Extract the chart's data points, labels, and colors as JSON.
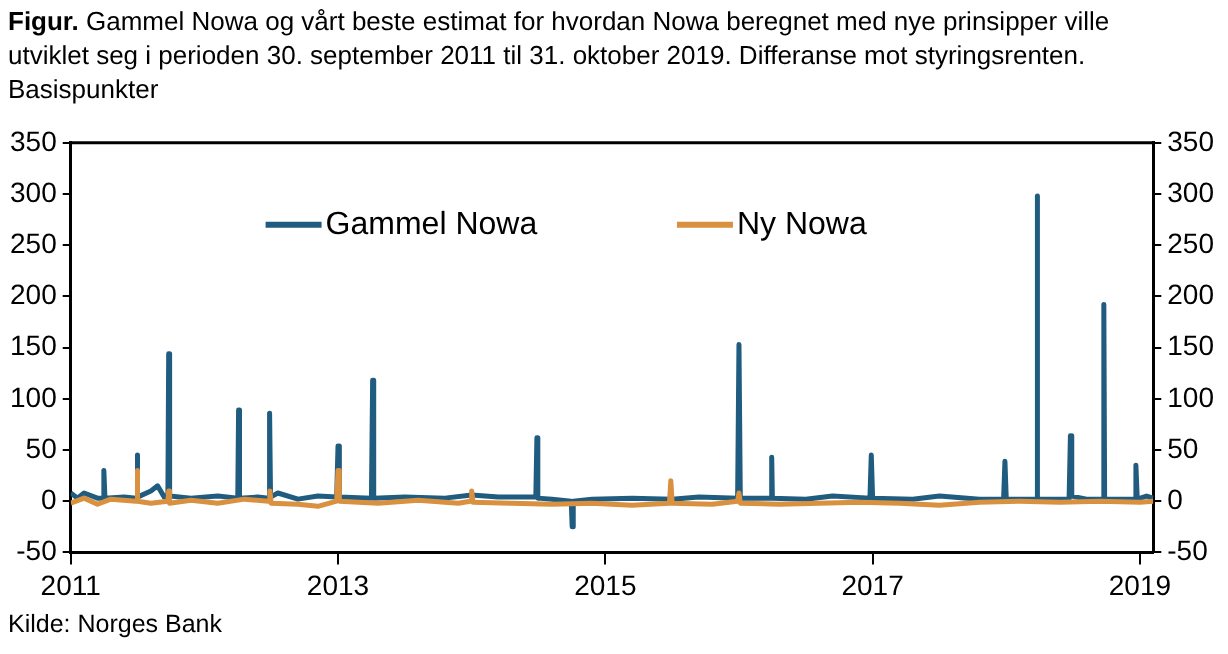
{
  "chart_data": {
    "type": "line",
    "title": "Figur.",
    "subtitle": "Gammel Nowa og vårt beste estimat for hvordan Nowa beregnet med nye prinsipper ville utviklet seg i perioden 30. september 2011 til 31. oktober 2019. Differanse mot styringsrenten. Basispunkter",
    "annotations": [
      "Kilde: Norges Bank"
    ],
    "xlim": [
      2011,
      2019.1
    ],
    "xticks": [
      2011,
      2013,
      2015,
      2017,
      2019
    ],
    "ylim": [
      -50,
      350
    ],
    "yticks": [
      -50,
      0,
      50,
      100,
      150,
      200,
      250,
      300,
      350
    ],
    "y2lim": [
      -50,
      350
    ],
    "y2ticks": [
      -50,
      0,
      50,
      100,
      150,
      200,
      250,
      300,
      350
    ],
    "grid": false,
    "legend": "top",
    "marker": "none",
    "line_style": "solid",
    "series": [
      {
        "name": "Gammel Nowa",
        "color": "#1f5c80",
        "x": [
          2011.0,
          2011.05,
          2011.1,
          2011.2,
          2011.24,
          2011.248,
          2011.256,
          2011.4,
          2011.49,
          2011.496,
          2011.503,
          2011.6,
          2011.65,
          2011.7,
          2011.727,
          2011.733,
          2011.74,
          2011.9,
          2012.1,
          2012.25,
          2012.256,
          2012.263,
          2012.4,
          2012.48,
          2012.488,
          2012.495,
          2012.55,
          2012.7,
          2012.85,
          2012.99,
          2013.0,
          2013.01,
          2013.25,
          2013.259,
          2013.267,
          2013.5,
          2013.8,
          2014.0,
          2014.2,
          2014.48,
          2014.488,
          2014.495,
          2014.6,
          2014.745,
          2014.752,
          2014.76,
          2014.9,
          2015.2,
          2015.5,
          2015.7,
          2015.99,
          2016.0,
          2016.01,
          2016.24,
          2016.245,
          2016.25,
          2016.5,
          2016.7,
          2016.98,
          2016.99,
          2017.0,
          2017.3,
          2017.5,
          2017.8,
          2017.98,
          2017.99,
          2018.0,
          2018.225,
          2018.23,
          2018.236,
          2018.47,
          2018.48,
          2018.49,
          2018.6,
          2018.725,
          2018.73,
          2018.736,
          2018.96,
          2018.97,
          2018.98,
          2019.05,
          2019.1
        ],
        "values": [
          8,
          3,
          8,
          3,
          3,
          30,
          3,
          4,
          3,
          45,
          4,
          10,
          15,
          4,
          4,
          144,
          5,
          3,
          5,
          3,
          89,
          3,
          4,
          3,
          86,
          4,
          8,
          2,
          5,
          4,
          54,
          4,
          3,
          118,
          3,
          4,
          3,
          6,
          4,
          4,
          62,
          3,
          2,
          0,
          -25,
          0,
          2,
          3,
          2,
          4,
          3,
          153,
          3,
          3,
          43,
          3,
          2,
          5,
          3,
          45,
          3,
          2,
          5,
          2,
          2,
          39,
          2,
          2,
          298,
          2,
          2,
          64,
          5,
          2,
          2,
          192,
          2,
          2,
          35,
          2,
          5,
          3
        ]
      },
      {
        "name": "Ny Nowa",
        "color": "#d9903f",
        "x": [
          2011.0,
          2011.1,
          2011.2,
          2011.3,
          2011.49,
          2011.496,
          2011.503,
          2011.6,
          2011.727,
          2011.733,
          2011.74,
          2011.9,
          2012.1,
          2012.3,
          2012.48,
          2012.49,
          2012.5,
          2012.7,
          2012.85,
          2012.99,
          2013.0,
          2013.01,
          2013.3,
          2013.6,
          2013.9,
          2013.99,
          2014.0,
          2014.01,
          2014.3,
          2014.6,
          2014.9,
          2015.2,
          2015.48,
          2015.49,
          2015.5,
          2015.8,
          2015.99,
          2016.0,
          2016.01,
          2016.3,
          2016.6,
          2016.9,
          2017.2,
          2017.5,
          2017.8,
          2018.1,
          2018.4,
          2018.7,
          2019.0,
          2019.1
        ],
        "values": [
          -2,
          3,
          -3,
          2,
          0,
          30,
          0,
          -2,
          0,
          10,
          -2,
          1,
          -2,
          2,
          0,
          10,
          -2,
          -3,
          -5,
          0,
          30,
          0,
          -2,
          1,
          -2,
          0,
          10,
          -1,
          -2,
          -3,
          -2,
          -4,
          -2,
          20,
          -2,
          -3,
          0,
          8,
          -2,
          -3,
          -2,
          -1,
          -2,
          -4,
          -1,
          0,
          -1,
          0,
          -1,
          0
        ]
      }
    ]
  }
}
